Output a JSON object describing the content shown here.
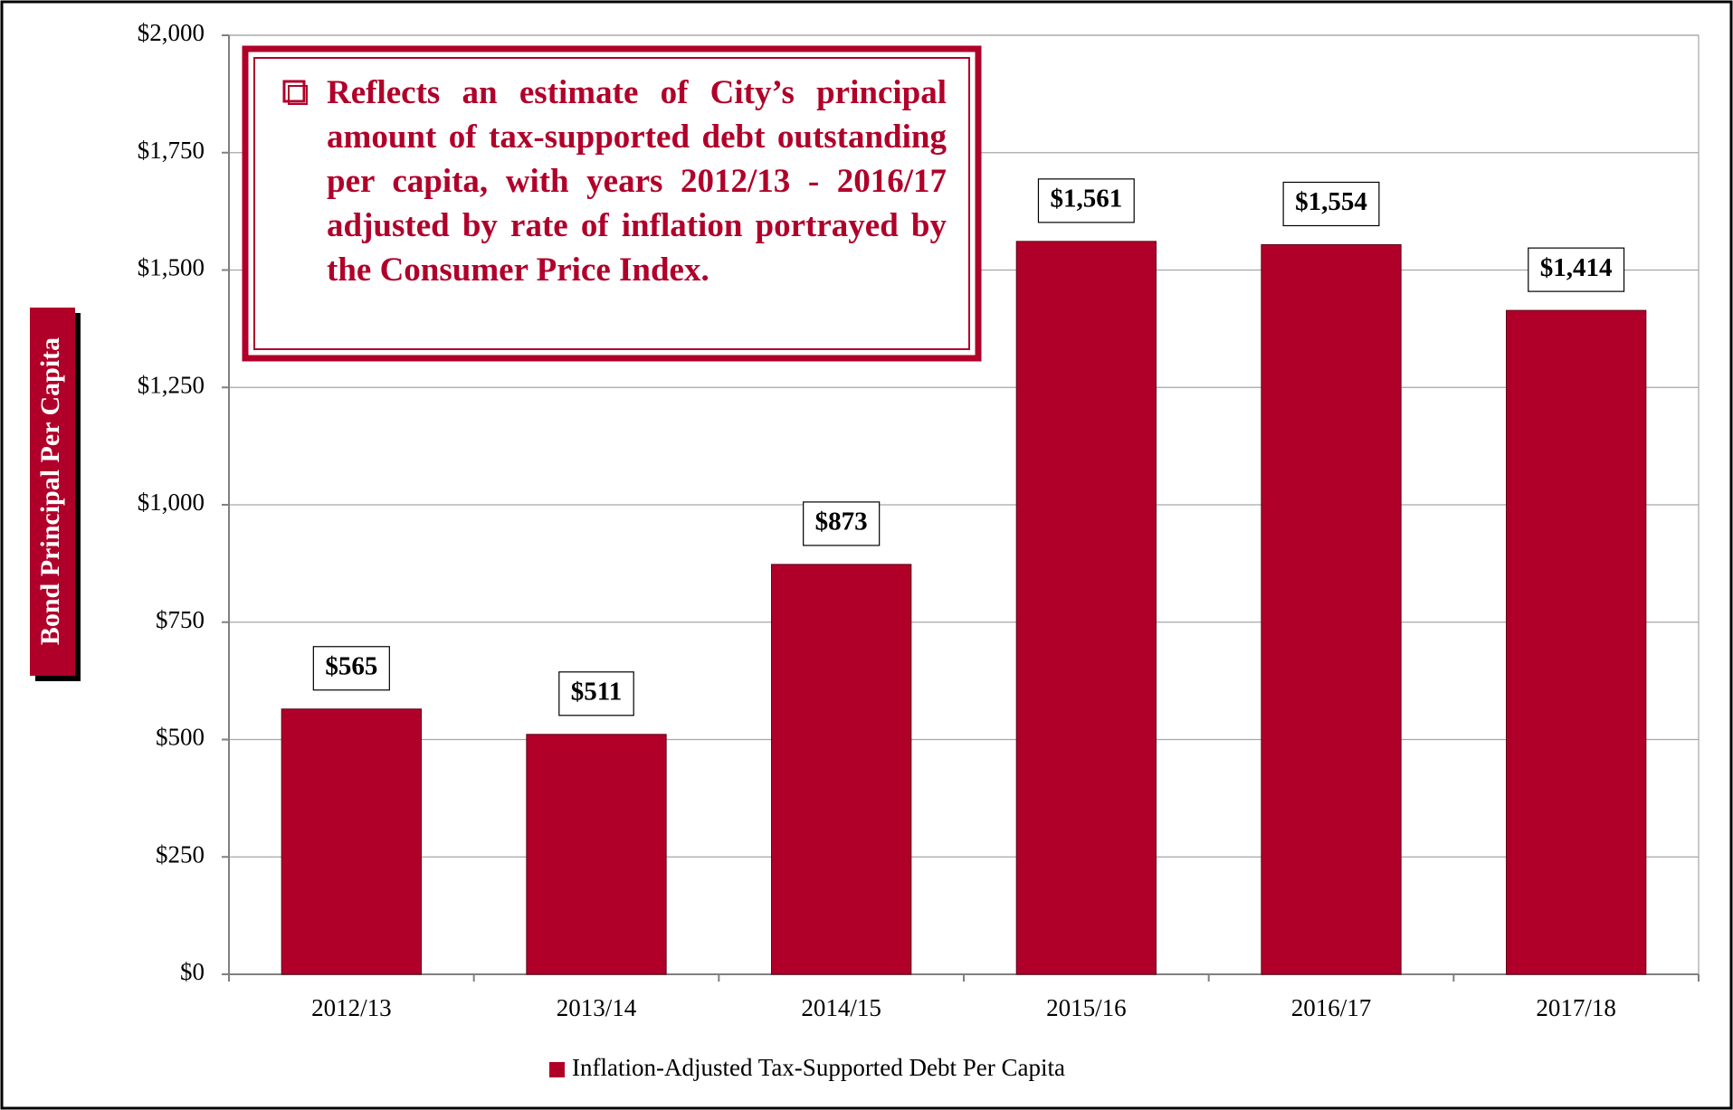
{
  "chart_data": {
    "type": "bar",
    "annotation": "Reflects an estimate of City’s principal amount of tax-supported debt outstanding per capita, with years 2012/13 - 2016/17 adjusted by rate of inflation portrayed by the Consumer Price Index.",
    "y_label": "Bond Principal Per Capita",
    "categories": [
      "2012/13",
      "2013/14",
      "2014/15",
      "2015/16",
      "2016/17",
      "2017/18"
    ],
    "series": [
      {
        "name": "Inflation-Adjusted Tax-Supported Debt Per Capita",
        "color": "#b0002a",
        "values": [
          565,
          511,
          873,
          1561,
          1554,
          1414
        ],
        "value_labels": [
          "$565",
          "$511",
          "$873",
          "$1,561",
          "$1,554",
          "$1,414"
        ]
      }
    ],
    "ylim": [
      0,
      2000
    ],
    "yticks": [
      {
        "value": 0,
        "label": "$0"
      },
      {
        "value": 250,
        "label": "$250"
      },
      {
        "value": 500,
        "label": "$500"
      },
      {
        "value": 750,
        "label": "$750"
      },
      {
        "value": 1000,
        "label": "$1,000"
      },
      {
        "value": 1250,
        "label": "$1,250"
      },
      {
        "value": 1500,
        "label": "$1,500"
      },
      {
        "value": 1750,
        "label": "$1,750"
      },
      {
        "value": 2000,
        "label": "$2,000"
      }
    ],
    "grid": true,
    "legend": "bottom"
  }
}
